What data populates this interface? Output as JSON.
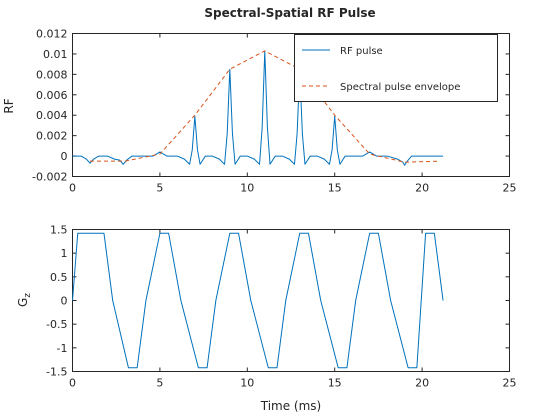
{
  "figure": {
    "title": "Spectral-Spatial RF Pulse",
    "colors": {
      "rf": "#0072bd",
      "envelope": "#d95319",
      "gradient": "#0072bd",
      "axes": "#262626"
    }
  },
  "chart_data": [
    {
      "type": "line",
      "title": "Spectral-Spatial RF Pulse",
      "xlabel": "",
      "ylabel": "RF",
      "xlim": [
        0,
        25
      ],
      "ylim": [
        -0.002,
        0.012
      ],
      "x_ticks": [
        0,
        5,
        10,
        15,
        20,
        25
      ],
      "y_ticks": [
        -0.002,
        0,
        0.002,
        0.004,
        0.006,
        0.008,
        0.01,
        0.012
      ],
      "x_tick_labels": [
        "0",
        "5",
        "10",
        "15",
        "20",
        "25"
      ],
      "y_tick_labels": [
        "-0.002",
        "0",
        "0.002",
        "0.004",
        "0.006",
        "0.008",
        "0.01",
        "0.012"
      ],
      "legend": {
        "placement": "top-right",
        "entries": [
          "RF pulse",
          "Spectral pulse envelope"
        ]
      },
      "series": [
        {
          "name": "RF pulse",
          "style": "solid",
          "x": [
            0,
            0.5,
            0.8,
            1.0,
            1.2,
            1.5,
            2.0,
            2.4,
            2.7,
            2.9,
            3.1,
            3.4,
            4.0,
            4.6,
            4.8,
            5.0,
            5.2,
            5.4,
            6.0,
            6.4,
            6.7,
            6.85,
            7.0,
            7.15,
            7.3,
            7.6,
            8.0,
            8.4,
            8.7,
            8.85,
            9.0,
            9.15,
            9.3,
            9.6,
            10.0,
            10.4,
            10.7,
            10.85,
            11.0,
            11.15,
            11.3,
            11.6,
            12.0,
            12.4,
            12.7,
            12.85,
            13.0,
            13.15,
            13.3,
            13.6,
            14.0,
            14.4,
            14.7,
            14.85,
            15.0,
            15.15,
            15.3,
            15.6,
            16.0,
            16.6,
            16.8,
            17.0,
            17.2,
            17.4,
            18.0,
            18.6,
            18.9,
            19.0,
            19.1,
            19.4,
            20.0,
            21.2
          ],
          "values": [
            0,
            0,
            -0.0003,
            -0.0007,
            -0.0003,
            0,
            0,
            -0.0003,
            -0.0004,
            -0.0008,
            -0.0004,
            0,
            0,
            0,
            0.0002,
            0.0004,
            0.0002,
            0,
            0,
            -0.0003,
            -0.0008,
            0.0006,
            0.0039,
            0.0006,
            -0.0008,
            0,
            0,
            -0.0003,
            -0.0008,
            0.0022,
            0.0085,
            0.0022,
            -0.0008,
            0,
            0,
            -0.0003,
            -0.0008,
            0.0028,
            0.0103,
            0.0028,
            -0.0008,
            0,
            0,
            -0.0003,
            -0.0008,
            0.0022,
            0.0085,
            0.0022,
            -0.0008,
            0,
            0,
            -0.0003,
            -0.0008,
            0.0006,
            0.0039,
            0.0006,
            -0.0008,
            0,
            0,
            0,
            0.0002,
            0.0004,
            0.0002,
            0,
            0,
            -0.0003,
            -0.0006,
            -0.0009,
            -0.0006,
            0,
            0,
            0
          ]
        },
        {
          "name": "Spectral pulse envelope",
          "style": "dashed",
          "x": [
            1,
            3,
            5,
            7,
            9,
            11,
            13,
            15,
            17,
            19,
            21
          ],
          "values": [
            -0.0005,
            -0.0005,
            0.0002,
            0.004,
            0.0085,
            0.0103,
            0.0085,
            0.004,
            0.0002,
            -0.0006,
            -0.0005
          ]
        }
      ]
    },
    {
      "type": "line",
      "title": "",
      "xlabel": "Time (ms)",
      "ylabel_main": "G",
      "ylabel_sub": "z",
      "xlim": [
        0,
        25
      ],
      "ylim": [
        -1.5,
        1.5
      ],
      "x_ticks": [
        0,
        5,
        10,
        15,
        20,
        25
      ],
      "y_ticks": [
        -1.5,
        -1,
        -0.5,
        0,
        0.5,
        1,
        1.5
      ],
      "x_tick_labels": [
        "0",
        "5",
        "10",
        "15",
        "20",
        "25"
      ],
      "y_tick_labels": [
        "-1.5",
        "-1",
        "-0.5",
        "0",
        "0.5",
        "1",
        "1.5"
      ],
      "series": [
        {
          "name": "",
          "x": [
            0,
            0.3,
            1.8,
            2.3,
            3.2,
            3.7,
            4.2,
            5.0,
            5.5,
            6.2,
            7.2,
            7.7,
            8.2,
            9.0,
            9.5,
            10.2,
            11.2,
            11.7,
            12.2,
            13.0,
            13.5,
            14.2,
            15.2,
            15.7,
            16.2,
            17.0,
            17.5,
            18.2,
            19.2,
            19.7,
            20.2,
            20.7,
            21.2
          ],
          "values": [
            0,
            1.42,
            1.42,
            0,
            -1.42,
            -1.42,
            0,
            1.42,
            1.42,
            0,
            -1.42,
            -1.42,
            0,
            1.42,
            1.42,
            0,
            -1.42,
            -1.42,
            0,
            1.42,
            1.42,
            0,
            -1.42,
            -1.42,
            0,
            1.42,
            1.42,
            0,
            -1.42,
            -1.42,
            1.42,
            1.42,
            0
          ]
        }
      ]
    }
  ]
}
